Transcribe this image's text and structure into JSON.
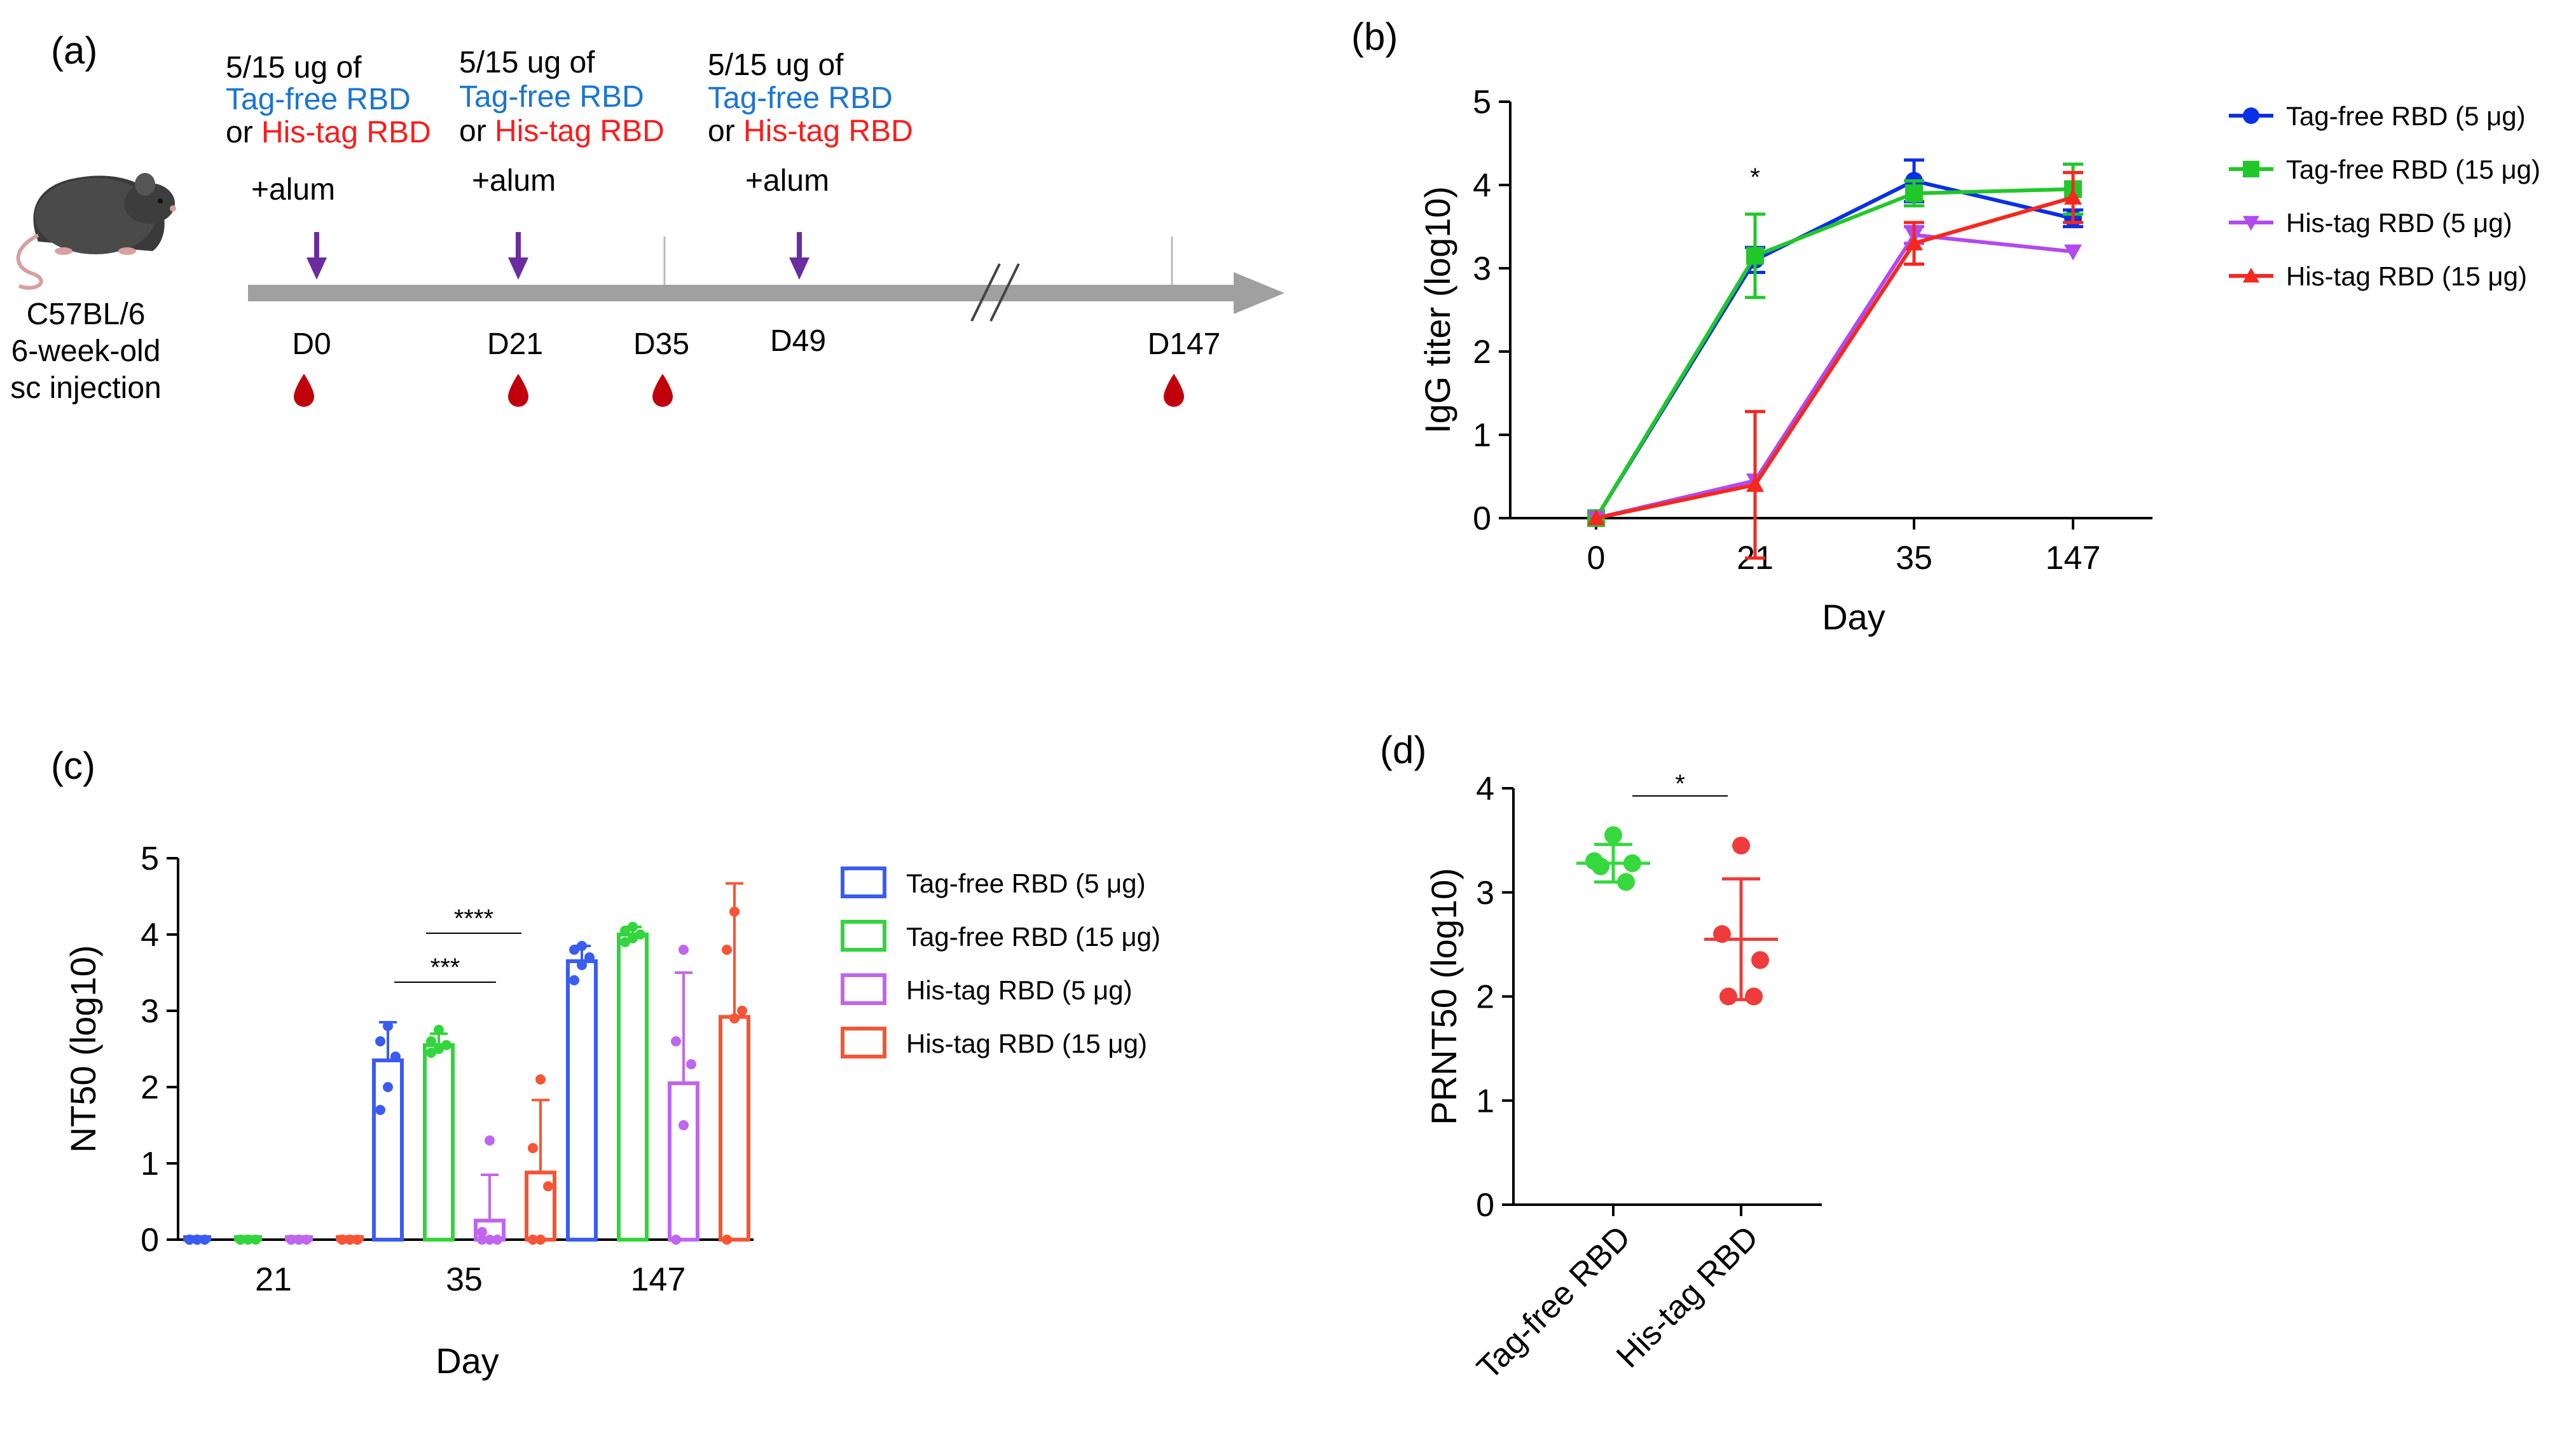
{
  "panel_a": {
    "label": "(a)",
    "mouse": {
      "strain": "C57BL/6",
      "age": "6-week-old",
      "route": "sc injection"
    },
    "doses": [
      {
        "line1": "5/15 ug of",
        "line2": "Tag-free RBD",
        "line3_prefix": "or ",
        "line3": "His-tag RBD",
        "adjuvant": "+alum"
      },
      {
        "line1": "5/15 ug of",
        "line2": "Tag-free RBD",
        "line3_prefix": "or ",
        "line3": "His-tag RBD",
        "adjuvant": "+alum"
      },
      {
        "line1": "5/15 ug of",
        "line2": "Tag-free RBD",
        "line3_prefix": "or ",
        "line3": "His-tag RBD",
        "adjuvant": "+alum"
      }
    ],
    "timepoints": [
      "D0",
      "D21",
      "D35",
      "D49",
      "D147"
    ],
    "colors": {
      "tagfree": "#1a75d1",
      "histag": "#ff1a1a",
      "arrow": "#6a2c9e",
      "timeline": "#a0a0a0",
      "blood": "#c0000b"
    }
  },
  "chart_data": [
    {
      "panel": "(b)",
      "type": "line",
      "xlabel": "Day",
      "ylabel": "IgG titer (log10)",
      "categories": [
        "0",
        "21",
        "35",
        "147"
      ],
      "ylim": [
        0,
        5
      ],
      "yticks": [
        "0",
        "1",
        "2",
        "3",
        "4",
        "5"
      ],
      "significance": [
        {
          "at": "21",
          "text": "*"
        }
      ],
      "series": [
        {
          "name": "Tag-free RBD (5 μg)",
          "color": "#0a2fe6",
          "marker": "circle",
          "values": [
            0,
            3.1,
            4.05,
            3.6
          ],
          "err": [
            0,
            0.15,
            0.25,
            0.1
          ]
        },
        {
          "name": "Tag-free RBD (15 μg)",
          "color": "#22c72a",
          "marker": "square",
          "values": [
            0,
            3.15,
            3.9,
            3.95
          ],
          "err": [
            0,
            0.5,
            0.15,
            0.3
          ]
        },
        {
          "name": "His-tag RBD (5 μg)",
          "color": "#b14aef",
          "marker": "triangle-down",
          "values": [
            0,
            0.45,
            3.4,
            3.2
          ],
          "err": [
            0,
            0,
            0.1,
            0
          ]
        },
        {
          "name": "His-tag RBD (15 μg)",
          "color": "#f5281e",
          "marker": "triangle-up",
          "values": [
            0,
            0.4,
            3.3,
            3.85
          ],
          "err": [
            0,
            0.88,
            0.25,
            0.3
          ]
        }
      ]
    },
    {
      "panel": "(c)",
      "type": "bar",
      "xlabel": "Day",
      "ylabel": "NT50 (log10)",
      "categories": [
        "21",
        "35",
        "147"
      ],
      "ylim": [
        0,
        5
      ],
      "yticks": [
        "0",
        "1",
        "2",
        "3",
        "4",
        "5"
      ],
      "significance": [
        {
          "at": "35",
          "text": "****"
        },
        {
          "at": "35",
          "text": "***"
        }
      ],
      "series": [
        {
          "name": "Tag-free RBD (5 μg)",
          "color": "#3b5cf0",
          "values": [
            0,
            2.35,
            3.65
          ],
          "err": [
            0,
            0.5,
            0.2
          ],
          "points": [
            [
              0,
              0,
              0,
              0,
              0
            ],
            [
              1.7,
              2.0,
              2.4,
              2.6,
              2.8
            ],
            [
              3.4,
              3.6,
              3.7,
              3.8,
              3.85
            ]
          ]
        },
        {
          "name": "Tag-free RBD (15 μg)",
          "color": "#33d53d",
          "values": [
            0,
            2.55,
            4.0
          ],
          "err": [
            0,
            0.15,
            0.1
          ],
          "points": [
            [
              0,
              0,
              0,
              0,
              0
            ],
            [
              2.45,
              2.5,
              2.55,
              2.6,
              2.75
            ],
            [
              3.9,
              3.95,
              4.0,
              4.05,
              4.1
            ]
          ]
        },
        {
          "name": "His-tag RBD (5 μg)",
          "color": "#c066ee",
          "values": [
            0,
            0.25,
            2.05
          ],
          "err": [
            0,
            0.6,
            1.45
          ],
          "points": [
            [
              0,
              0,
              0,
              0,
              0
            ],
            [
              0,
              0,
              0,
              0.1,
              1.3
            ],
            [
              0,
              1.5,
              2.3,
              2.6,
              3.8
            ]
          ]
        },
        {
          "name": "His-tag RBD (15 μg)",
          "color": "#f55535",
          "values": [
            0,
            0.88,
            2.92
          ],
          "err": [
            0,
            0.95,
            1.75
          ],
          "points": [
            [
              0,
              0,
              0,
              0,
              0
            ],
            [
              0,
              0,
              0.7,
              1.2,
              2.1
            ],
            [
              0,
              2.9,
              3.0,
              3.8,
              4.3
            ]
          ]
        }
      ]
    },
    {
      "panel": "(d)",
      "type": "scatter",
      "ylabel": "PRNT50 (log10)",
      "categories": [
        "Tag-free RBD",
        "His-tag RBD"
      ],
      "ylim": [
        0,
        4
      ],
      "yticks": [
        "0",
        "1",
        "2",
        "3",
        "4"
      ],
      "significance": [
        {
          "between": [
            "Tag-free RBD",
            "His-tag RBD"
          ],
          "text": "*"
        }
      ],
      "series": [
        {
          "name": "Tag-free RBD",
          "color": "#36d83e",
          "mean": 3.28,
          "err": 0.18,
          "points": [
            3.55,
            3.3,
            3.28,
            3.25,
            3.1
          ]
        },
        {
          "name": "His-tag RBD",
          "color": "#ef3b3b",
          "mean": 2.55,
          "err": 0.58,
          "points": [
            3.45,
            2.6,
            2.35,
            2.0,
            2.0
          ]
        }
      ]
    }
  ]
}
